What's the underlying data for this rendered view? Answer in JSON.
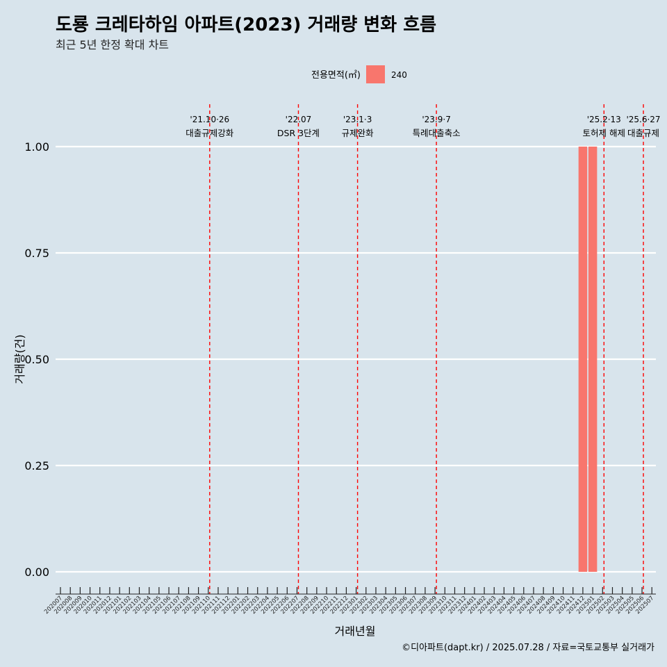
{
  "chart_data": {
    "type": "bar",
    "title": "도룡 크레타하임 아파트(2023) 거래량 변화 흐름",
    "subtitle": "최근 5년 한정 확대 차트",
    "xlabel": "거래년월",
    "ylabel": "거래량(건)",
    "ylim": [
      0,
      1
    ],
    "yticks": [
      "0.00",
      "0.25",
      "0.50",
      "0.75",
      "1.00"
    ],
    "ytick_values": [
      0,
      0.25,
      0.5,
      0.75,
      1.0
    ],
    "grid": "horizontal",
    "legend": {
      "title": "전용면적(㎡)",
      "placement": "top-center",
      "entries": [
        {
          "label": "240",
          "color": "#f8766d"
        }
      ]
    },
    "categories": [
      "202007",
      "202008",
      "202009",
      "202010",
      "202011",
      "202012",
      "202101",
      "202102",
      "202103",
      "202104",
      "202105",
      "202106",
      "202107",
      "202108",
      "202109",
      "202110",
      "202111",
      "202112",
      "202201",
      "202202",
      "202203",
      "202204",
      "202205",
      "202206",
      "202207",
      "202208",
      "202209",
      "202210",
      "202211",
      "202212",
      "202301",
      "202302",
      "202303",
      "202304",
      "202305",
      "202306",
      "202307",
      "202308",
      "202309",
      "202310",
      "202311",
      "202312",
      "202401",
      "202402",
      "202403",
      "202404",
      "202405",
      "202406",
      "202407",
      "202408",
      "202409",
      "202410",
      "202411",
      "202412",
      "202501",
      "202502",
      "202503",
      "202504",
      "202505",
      "202506",
      "202507"
    ],
    "series": [
      {
        "name": "240",
        "color": "#f8766d",
        "points": [
          {
            "x": "202412",
            "y": 1
          },
          {
            "x": "202501",
            "y": 1
          }
        ]
      }
    ],
    "events": [
      {
        "at": "202110",
        "date": "'21.10·26",
        "label": "대출규제강화"
      },
      {
        "at": "202207",
        "date": "'22.07",
        "label": "DSR 3단계"
      },
      {
        "at": "202301",
        "date": "'23.1·3",
        "label": "규제완화"
      },
      {
        "at": "202309",
        "date": "'23.9·7",
        "label": "특례대출축소"
      },
      {
        "at": "202502",
        "date": "'25.2·13",
        "label": "토허제 해제"
      },
      {
        "at": "202506",
        "date": "'25.6·27",
        "label": "대출규제"
      }
    ]
  },
  "caption": "©디아파트(dapt.kr) / 2025.07.28 / 자료=국토교통부 실거래가",
  "colors": {
    "background": "#d8e4ec",
    "grid": "#ffffff",
    "event_line": "#ff0000",
    "bar": "#f8766d"
  }
}
